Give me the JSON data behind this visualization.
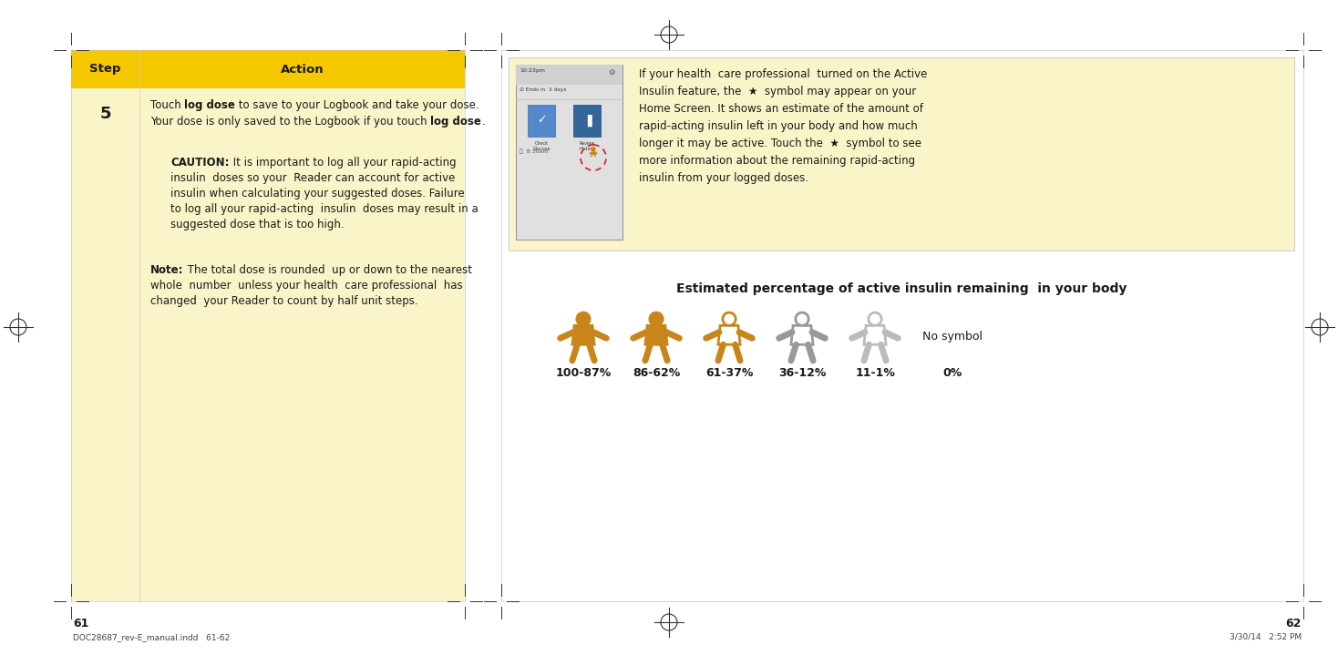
{
  "bg_color": "#ffffff",
  "left_panel_bg": "#faf5c8",
  "header_bg": "#f5c800",
  "header_text_color": "#1a1a1a",
  "body_text_color": "#1a1a1a",
  "golden_fill": "#c8861a",
  "golden_outline": "#c8861a",
  "gray_outline": "#999999",
  "light_outline": "#cccccc",
  "page_numbers": [
    "61",
    "62"
  ],
  "footer_left": "DOC28687_rev-E_manual.indd   61-62",
  "footer_right": "3/30/14   2:52 PM",
  "estimated_title": "Estimated percentage of active insulin remaining  in your body",
  "figure_labels": [
    "100-87%",
    "86-62%",
    "61-37%",
    "36-12%",
    "11-1%",
    "0%"
  ],
  "figure_label_extra": "No symbol",
  "info_text_lines": [
    "If your health  care professional  turned on the Active",
    "Insulin feature, the  ★  symbol may appear on your",
    "Home Screen. It shows an estimate of the amount of",
    "rapid-acting insulin left in your body and how much",
    "longer it may be active. Touch the  ★  symbol to see",
    "more information about the remaining rapid-acting",
    "insulin from your logged doses."
  ]
}
